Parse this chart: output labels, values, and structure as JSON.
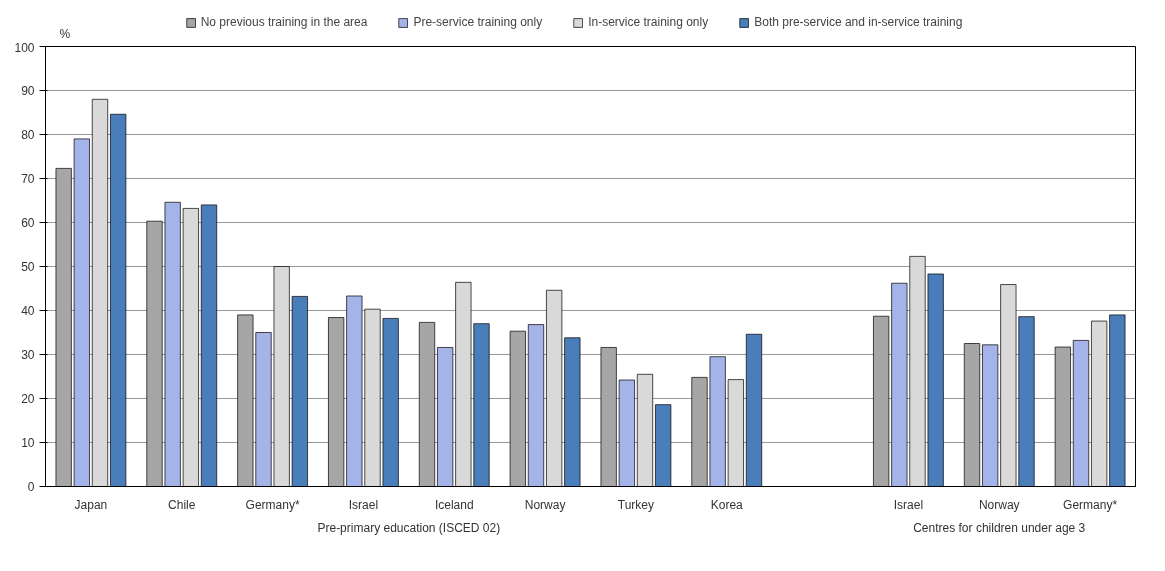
{
  "chart_data": {
    "type": "bar",
    "ylabel": "%",
    "categories": [
      "Japan",
      "Chile",
      "Germany*",
      "Israel",
      "Iceland",
      "Norway",
      "Turkey",
      "Korea",
      null,
      "Israel",
      "Norway",
      "Germany*"
    ],
    "series": [
      {
        "name": "No previous training in the area",
        "color": "#a6a6a6",
        "values": [
          72.3,
          60.3,
          39,
          38.4,
          37.3,
          35.3,
          31.6,
          24.8,
          null,
          38.7,
          32.5,
          31.7
        ]
      },
      {
        "name": "Pre-service training only",
        "color": "#a5b4e8",
        "values": [
          79,
          64.6,
          35,
          43.3,
          31.6,
          36.8,
          24.2,
          29.5,
          null,
          46.2,
          32.2,
          33.2
        ]
      },
      {
        "name": "In-service training only",
        "color": "#d9d9d9",
        "values": [
          88,
          63.2,
          50,
          40.3,
          46.4,
          44.6,
          25.5,
          24.3,
          null,
          52.3,
          45.9,
          37.6
        ]
      },
      {
        "name": "Both pre-service and in-service training",
        "color": "#4a7ebb",
        "values": [
          84.6,
          64,
          43.2,
          38.2,
          37,
          33.8,
          18.6,
          34.6,
          null,
          48.3,
          38.6,
          39
        ]
      }
    ],
    "annotations": [
      "Pre-primary education (ISCED 02)",
      "Centres for children under age 3"
    ],
    "ylim": [
      0,
      100
    ],
    "yticks": [
      0,
      10,
      20,
      30,
      40,
      50,
      60,
      70,
      80,
      90,
      100
    ],
    "grid": "y",
    "legend": "top"
  }
}
